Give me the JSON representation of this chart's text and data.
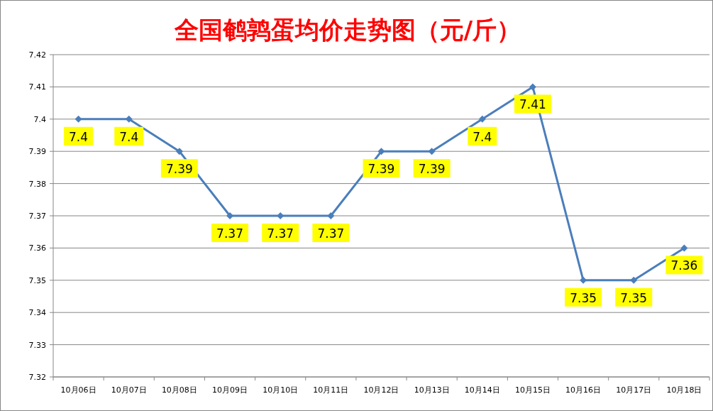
{
  "chart_data": {
    "type": "line",
    "title": "全国鹌鹑蛋均价走势图（元/斤）",
    "categories": [
      "10月06日",
      "10月07日",
      "10月08日",
      "10月09日",
      "10月10日",
      "10月11日",
      "10月12日",
      "10月13日",
      "10月14日",
      "10月15日",
      "10月16日",
      "10月17日",
      "10月18日"
    ],
    "series": [
      {
        "color": "#4a7ebb",
        "values": [
          7.4,
          7.4,
          7.39,
          7.37,
          7.37,
          7.37,
          7.39,
          7.39,
          7.4,
          7.41,
          7.35,
          7.35,
          7.36
        ]
      }
    ],
    "ylim": [
      7.32,
      7.42
    ],
    "yticks": [
      7.32,
      7.33,
      7.34,
      7.35,
      7.36,
      7.37,
      7.38,
      7.39,
      7.4,
      7.41,
      7.42
    ],
    "grid": "y",
    "marker": "diamond",
    "line_style": "solid",
    "data_labels": true
  }
}
